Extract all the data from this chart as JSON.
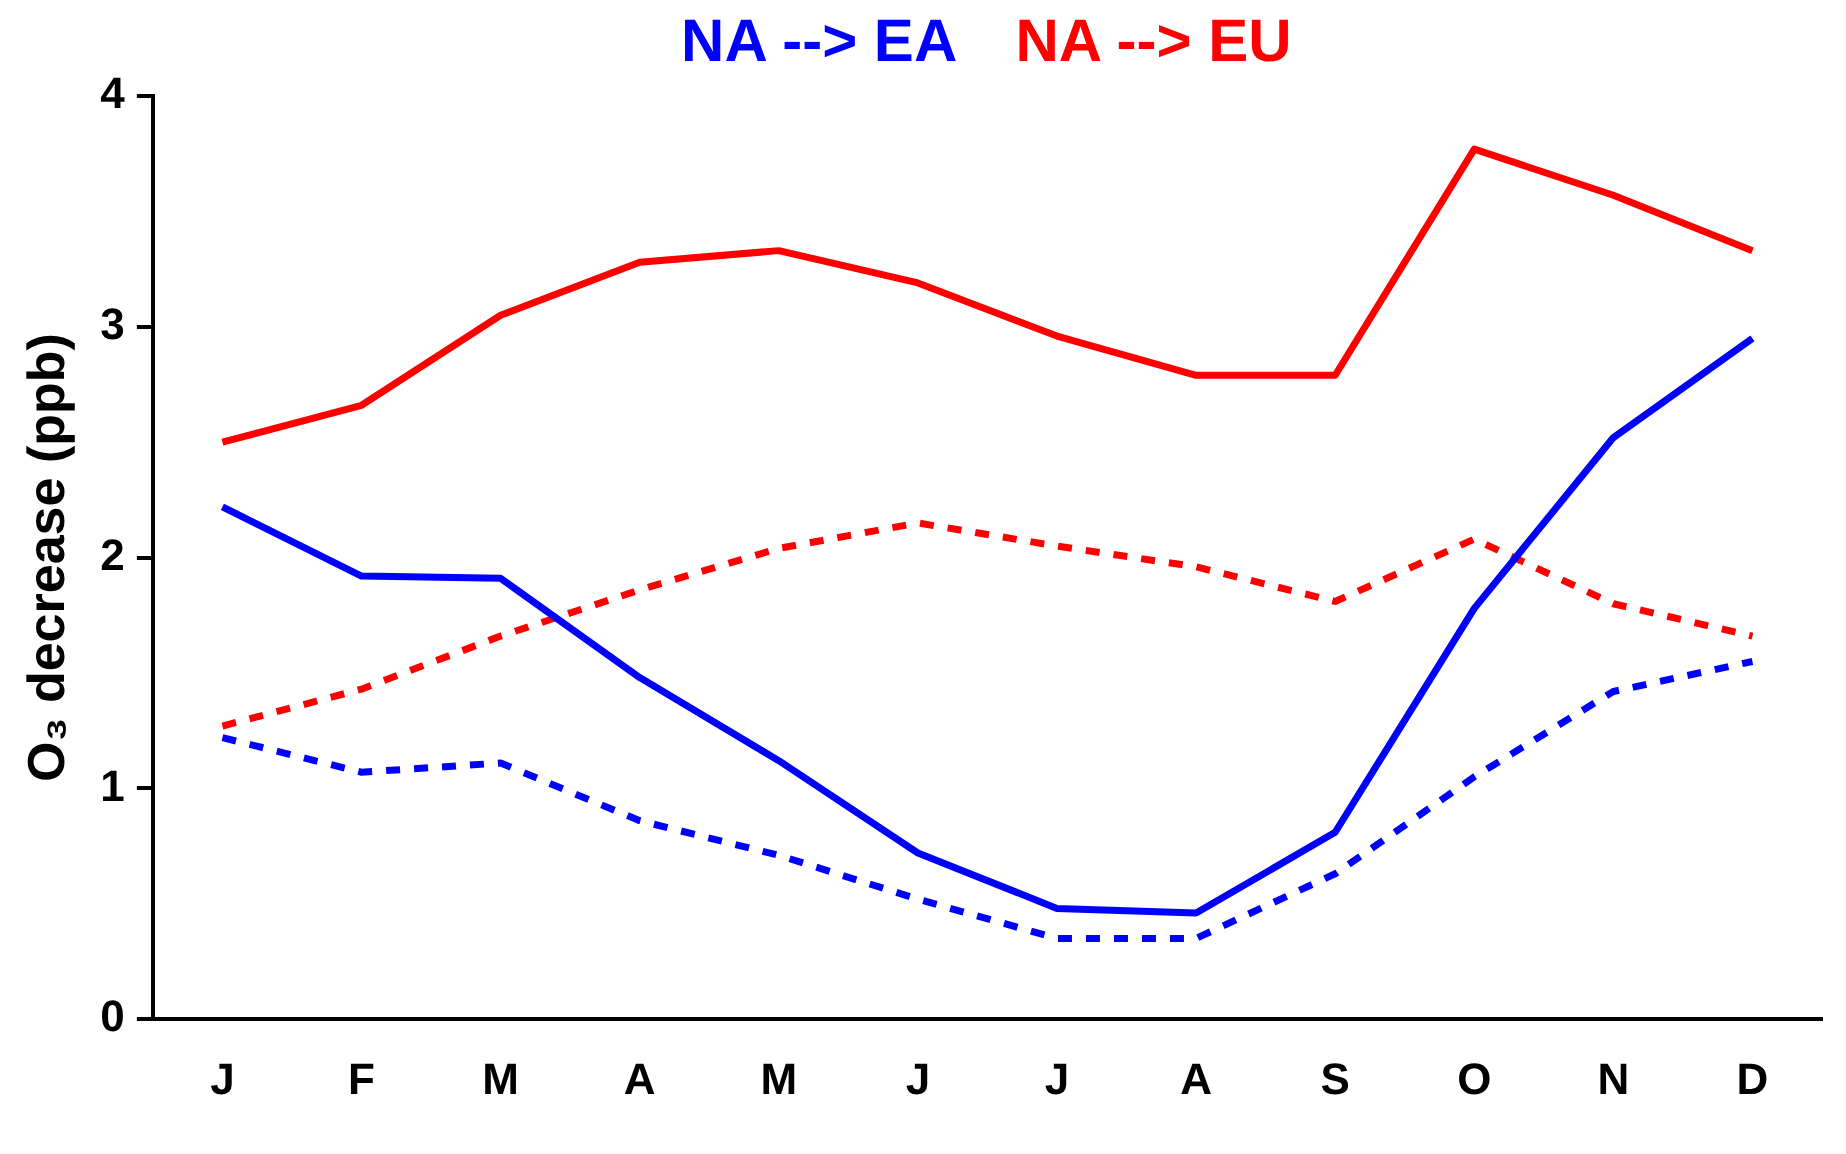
{
  "chart_data": {
    "type": "line",
    "ylabel": "O₃ decrease (ppb)",
    "categories": [
      "J",
      "F",
      "M",
      "A",
      "M",
      "J",
      "J",
      "A",
      "S",
      "O",
      "N",
      "D"
    ],
    "series": [
      {
        "name": "NA --> EA",
        "color": "#0000ff",
        "line_style": "solid",
        "values": [
          2.22,
          1.92,
          1.91,
          1.48,
          1.12,
          0.72,
          0.48,
          0.46,
          0.81,
          1.78,
          2.52,
          2.95
        ]
      },
      {
        "name": "NA --> EU",
        "color": "#ff0000",
        "line_style": "solid",
        "values": [
          2.5,
          2.66,
          3.05,
          3.28,
          3.33,
          3.19,
          2.96,
          2.79,
          2.79,
          3.77,
          3.57,
          3.33
        ]
      },
      {
        "color": "#ff0000",
        "line_style": "dashed",
        "values": [
          1.27,
          1.43,
          1.66,
          1.86,
          2.04,
          2.15,
          2.05,
          1.96,
          1.81,
          2.08,
          1.8,
          1.66
        ]
      },
      {
        "color": "#0000ff",
        "line_style": "dashed",
        "values": [
          1.22,
          1.07,
          1.11,
          0.86,
          0.71,
          0.52,
          0.35,
          0.35,
          0.63,
          1.05,
          1.42,
          1.55
        ]
      }
    ],
    "ylim": [
      0,
      4
    ],
    "yticks": [
      0,
      1,
      2,
      3,
      4
    ],
    "grid": false,
    "legend": "top",
    "marker": "none"
  }
}
